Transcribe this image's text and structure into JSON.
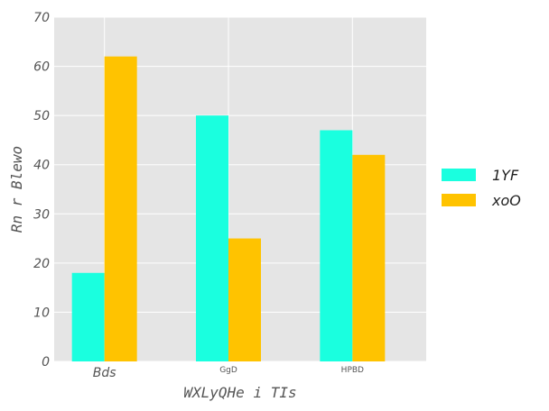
{
  "chart_data": {
    "type": "bar",
    "categories": [
      "Bds",
      "GgD",
      "HPBD"
    ],
    "series": [
      {
        "name": "1YF",
        "color": "#1affdf",
        "values": [
          18,
          50,
          47
        ]
      },
      {
        "name": "xoO",
        "color": "#ffc300",
        "values": [
          62,
          25,
          42
        ]
      }
    ],
    "xlabel": "WXLyQHe i TIs",
    "ylabel": "Rn r Blewo",
    "ylim": [
      0,
      70
    ],
    "yticks": [
      0,
      10,
      20,
      30,
      40,
      50,
      60,
      70
    ],
    "grid": true,
    "legend": "right",
    "background": "#e5e5e5"
  }
}
